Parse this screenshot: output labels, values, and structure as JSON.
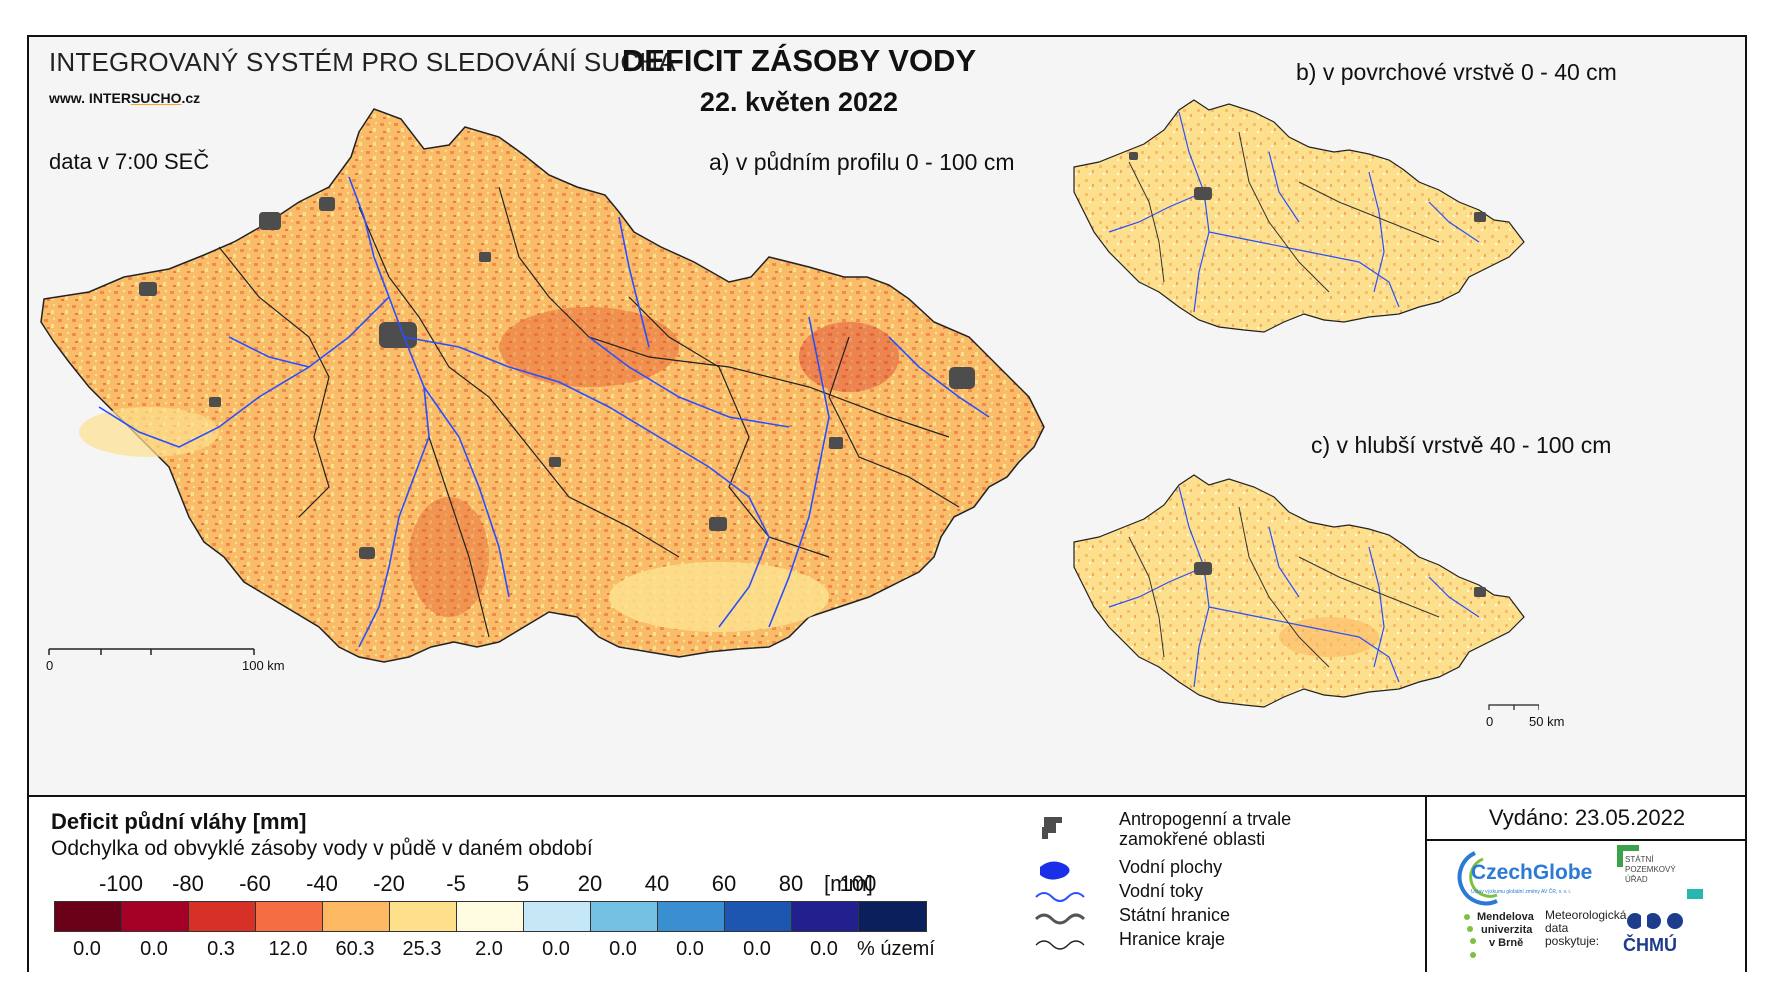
{
  "header": {
    "system_title": "INTEGROVANÝ SYSTÉM PRO SLEDOVÁNÍ SUCHA",
    "url_prefix": "www. INTER",
    "url_highlight": "SUCHO",
    "url_suffix": ".cz",
    "data_time": "data v 7:00 SEČ",
    "main_title": "DEFICIT ZÁSOBY VODY",
    "date": "22. květen 2022"
  },
  "maps": {
    "a": {
      "label": "a) v půdním profilu 0 - 100 cm",
      "scale_start": "0",
      "scale_end": "100 km"
    },
    "b": {
      "label": "b) v povrchové vrstvě 0 - 40 cm"
    },
    "c": {
      "label": "c) v hlubší vrstvě 40 - 100 cm",
      "scale_start": "0",
      "scale_end": "50 km"
    }
  },
  "legend": {
    "title": "Deficit půdní vláhy  [mm]",
    "subtitle": "Odchylka od obvyklé zásoby vody v půdě v daném období",
    "unit": "[mm]",
    "pct_unit": "% území",
    "ticks": [
      "-100",
      "-80",
      "-60",
      "-40",
      "-20",
      "-5",
      "5",
      "20",
      "40",
      "60",
      "80",
      "100"
    ],
    "colors": [
      "#6b0019",
      "#a50026",
      "#d73027",
      "#f46d43",
      "#fdb863",
      "#fee08b",
      "#fffbe0",
      "#c6e7f5",
      "#74c1e3",
      "#3a8fd1",
      "#1c56b0",
      "#221f8f",
      "#0a1f5c"
    ],
    "percentages": [
      "0.0",
      "0.0",
      "0.3",
      "12.0",
      "60.3",
      "25.3",
      "2.0",
      "0.0",
      "0.0",
      "0.0",
      "0.0",
      "0.0"
    ]
  },
  "symbols": {
    "urban": "Antropogenní a trvale zamokřené oblasti",
    "water_bodies": "Vodní plochy",
    "rivers": "Vodní toky",
    "state_border": "Státní hranice",
    "region_border": "Hranice kraje"
  },
  "issued": "Vydáno: 23.05.2022",
  "logos": {
    "czechglobe": "CzechGlobe",
    "czechglobe_sub": "Ústav výzkumu globální změny AV ČR, v. v. i.",
    "spu_line1": "STÁTNÍ",
    "spu_line2": "POZEMKOVÝ",
    "spu_line3": "ÚŘAD",
    "mendel_1": "Mendelova",
    "mendel_2": "univerzita",
    "mendel_3": "v Brně",
    "meteo_1": "Meteorologická",
    "meteo_2": "data",
    "meteo_3": "poskytuje:",
    "chmu": "ČHMÚ"
  },
  "colors": {
    "river": "#2a4fff",
    "urban": "#4d4d4d",
    "border": "#222222"
  }
}
